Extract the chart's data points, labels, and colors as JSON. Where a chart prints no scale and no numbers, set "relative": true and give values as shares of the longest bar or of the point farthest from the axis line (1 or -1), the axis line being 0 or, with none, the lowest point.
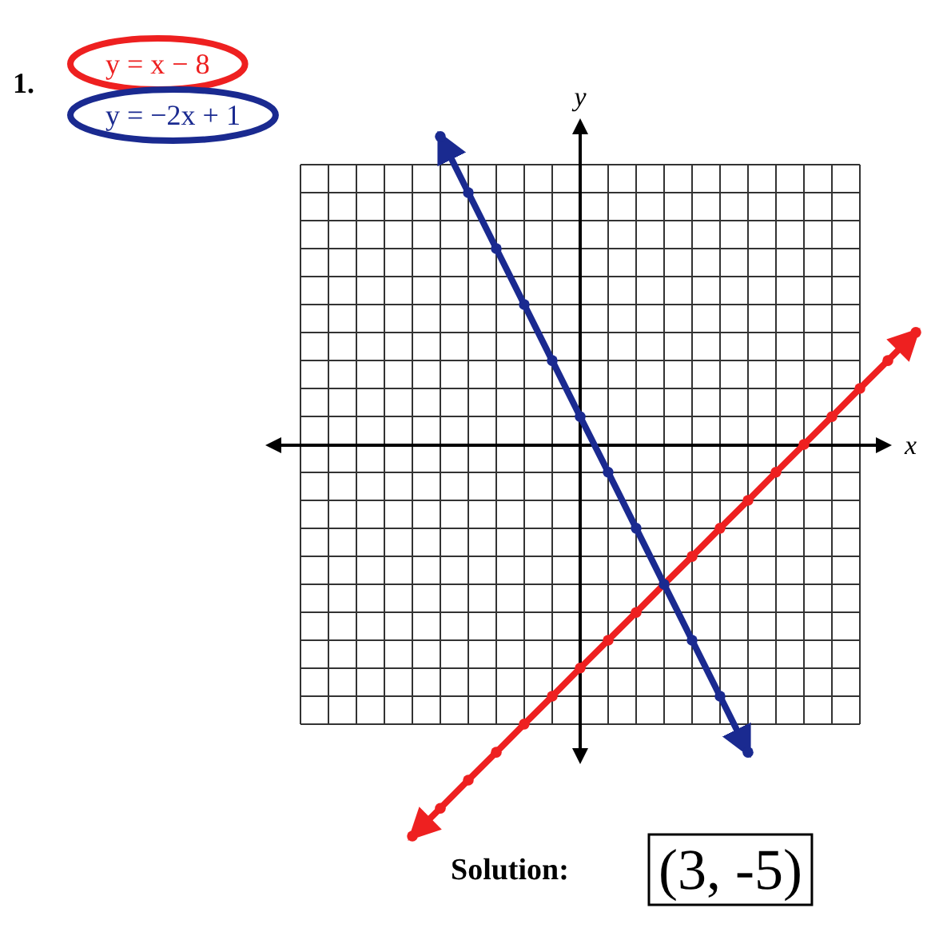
{
  "chart_data": {
    "type": "line",
    "title": "1.",
    "xlabel": "x",
    "ylabel": "y",
    "annotations": [
      "Solution:",
      "(3, -5)"
    ],
    "relative": true,
    "grid": true,
    "legend": "top left",
    "marker": "circle",
    "line_style": "solid",
    "categories": [
      null,
      null,
      null,
      null,
      null,
      null,
      null,
      null,
      null,
      null,
      null,
      null,
      null,
      null,
      null,
      null,
      null,
      null,
      null,
      null,
      null,
      null,
      null
    ],
    "series": [
      {
        "name": "y = x − 8",
        "color": "#ee2020",
        "values": [
          null,
          null,
          null,
          null,
          -1,
          -0.929,
          -0.857,
          -0.786,
          -0.714,
          -0.643,
          -0.571,
          -0.5,
          -0.429,
          -0.357,
          -0.286,
          -0.214,
          -0.143,
          -0.071,
          0,
          0.071,
          0.143,
          0.214,
          0.286
        ]
      },
      {
        "name": "y = −2x + 1",
        "color": "#1a2a90",
        "values": [
          null,
          null,
          null,
          null,
          null,
          0.786,
          0.643,
          0.5,
          0.357,
          0.214,
          0.071,
          -0.071,
          -0.214,
          -0.357,
          -0.5,
          -0.643,
          -0.786,
          null,
          null,
          null,
          null,
          null,
          null
        ]
      }
    ]
  }
}
